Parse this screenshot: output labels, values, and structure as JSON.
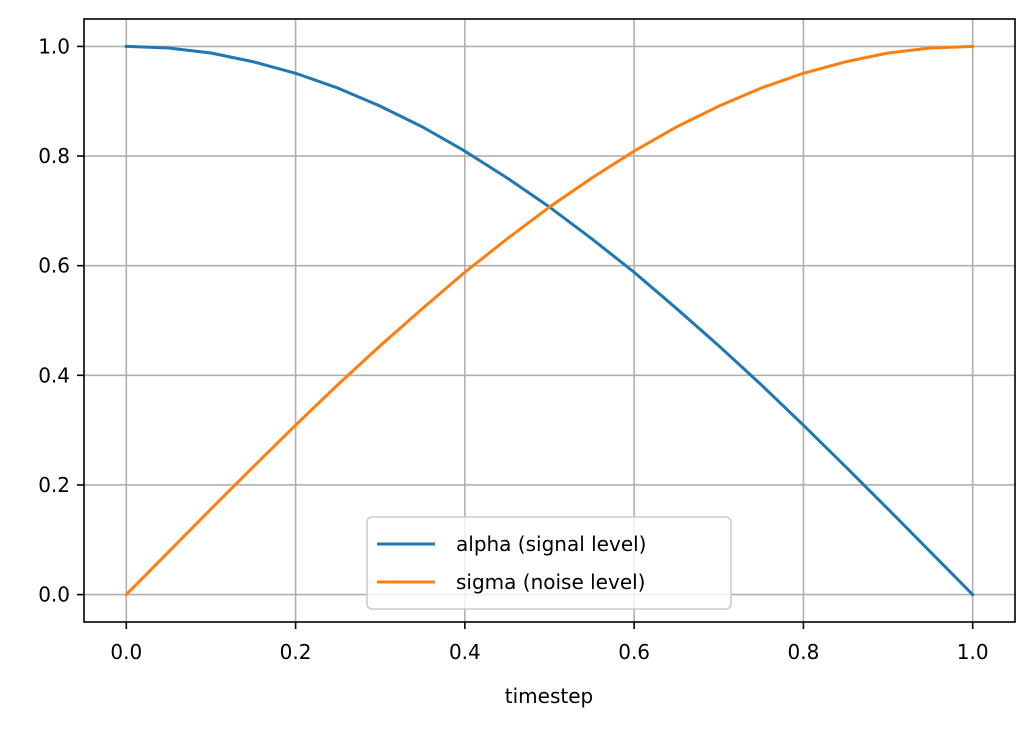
{
  "chart_data": {
    "type": "line",
    "title": "",
    "xlabel": "timestep",
    "ylabel": "",
    "xlim": [
      -0.05,
      1.05
    ],
    "ylim": [
      -0.05,
      1.05
    ],
    "grid": true,
    "legend_position": "bottom-center",
    "x_ticks": [
      0.0,
      0.2,
      0.4,
      0.6,
      0.8,
      1.0
    ],
    "x_tick_labels": [
      "0.0",
      "0.2",
      "0.4",
      "0.6",
      "0.8",
      "1.0"
    ],
    "y_ticks": [
      0.0,
      0.2,
      0.4,
      0.6,
      0.8,
      1.0
    ],
    "y_tick_labels": [
      "0.0",
      "0.2",
      "0.4",
      "0.6",
      "0.8",
      "1.0"
    ],
    "x": [
      0.0,
      0.05,
      0.1,
      0.15,
      0.2,
      0.25,
      0.3,
      0.35,
      0.4,
      0.45,
      0.5,
      0.55,
      0.6,
      0.65,
      0.7,
      0.75,
      0.8,
      0.85,
      0.9,
      0.95,
      1.0
    ],
    "series": [
      {
        "name": "alpha (signal level)",
        "color": "#1f77b4",
        "values": [
          1.0,
          0.997,
          0.988,
          0.972,
          0.951,
          0.924,
          0.891,
          0.853,
          0.809,
          0.76,
          0.707,
          0.649,
          0.588,
          0.522,
          0.454,
          0.383,
          0.309,
          0.233,
          0.156,
          0.078,
          0.0
        ]
      },
      {
        "name": "sigma (noise level)",
        "color": "#ff7f0e",
        "values": [
          0.0,
          0.078,
          0.156,
          0.233,
          0.309,
          0.383,
          0.454,
          0.522,
          0.588,
          0.649,
          0.707,
          0.76,
          0.809,
          0.853,
          0.891,
          0.924,
          0.951,
          0.972,
          0.988,
          0.997,
          1.0
        ]
      }
    ]
  }
}
